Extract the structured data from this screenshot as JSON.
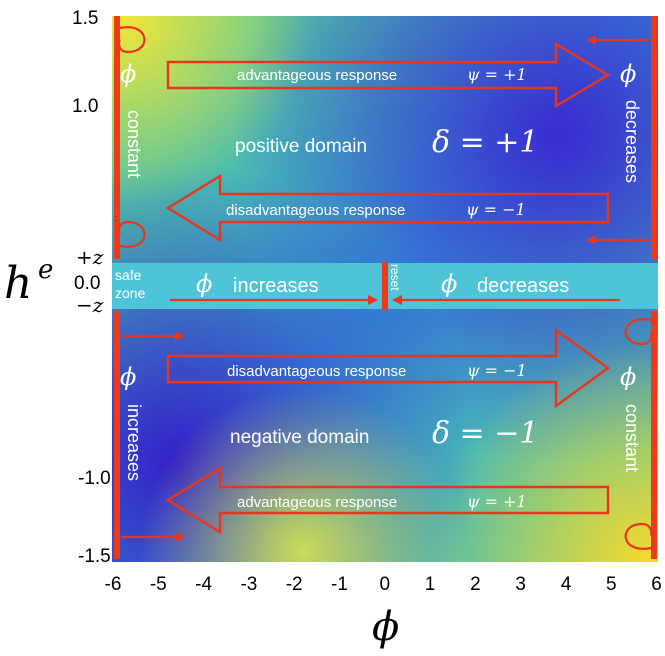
{
  "axes": {
    "x_ticks": [
      "-6",
      "-5",
      "-4",
      "-3",
      "-2",
      "-1",
      "0",
      "1",
      "2",
      "3",
      "4",
      "5",
      "6"
    ],
    "y_ticks": [
      "1.5",
      "1.0",
      "-1.0",
      "-1.5"
    ],
    "y_mid_ticks": [
      "+z",
      "0.0",
      "−z"
    ],
    "x_label": "ϕ",
    "y_label": "h",
    "y_label_sup": "e"
  },
  "upper": {
    "domain_label": "positive domain",
    "delta": "δ = +1",
    "top_arrow_label": "advantageous response",
    "top_arrow_psi": "ψ = +1",
    "bottom_arrow_label": "disadvantageous response",
    "bottom_arrow_psi": "ψ = −1",
    "left_vertical": "constant",
    "right_vertical": "decreases",
    "phi": "ϕ"
  },
  "lower": {
    "domain_label": "negative domain",
    "delta": "δ = −1",
    "top_arrow_label": "disadvantageous response",
    "top_arrow_psi": "ψ = −1",
    "bottom_arrow_label": "advantageous response",
    "bottom_arrow_psi": "ψ = +1",
    "left_vertical": "increases",
    "right_vertical": "constant",
    "phi": "ϕ"
  },
  "band": {
    "safe_zone_line1": "safe",
    "safe_zone_line2": "zone",
    "left_text": "increases",
    "right_text": "decreases",
    "reset": "reset",
    "phi": "ϕ"
  },
  "colors": {
    "arrow": "#e8361c",
    "band": "#4fc4d9",
    "text": "#ffffff"
  }
}
